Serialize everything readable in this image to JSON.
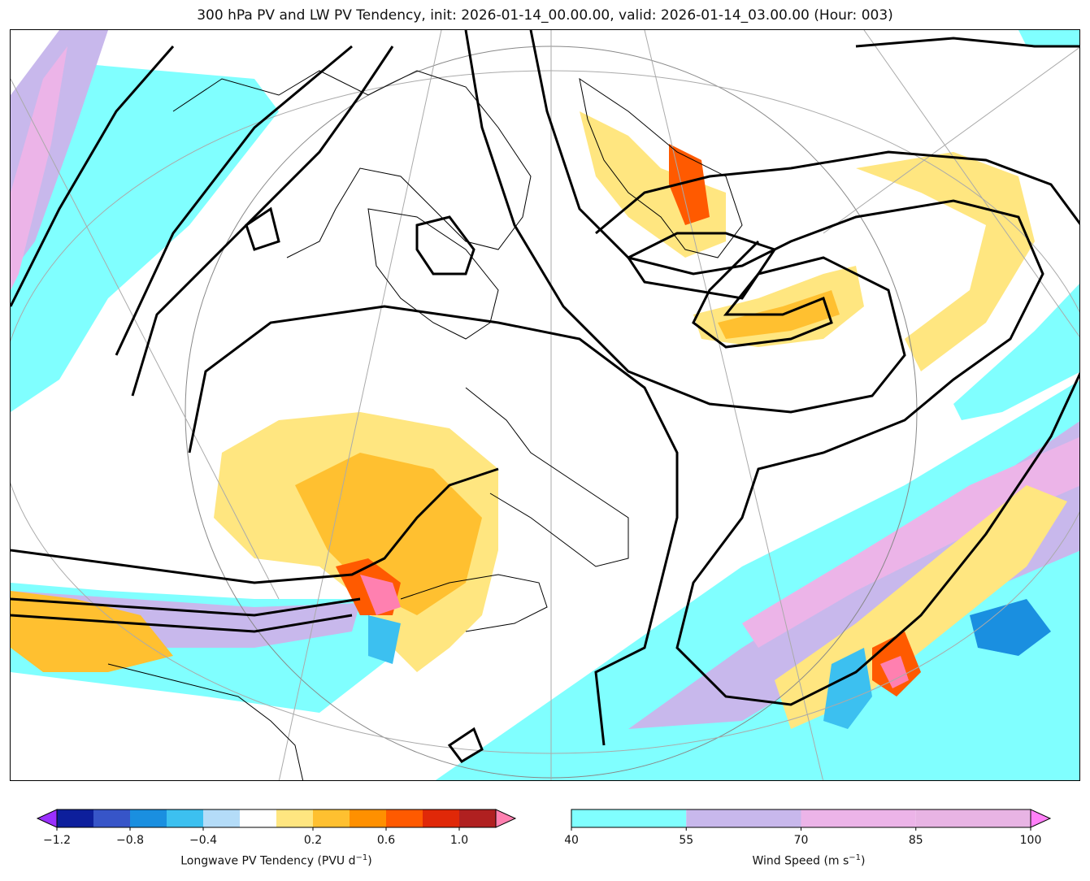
{
  "title": "300 hPa PV and LW PV Tendency, init: 2026-01-14_00.00.00, valid: 2026-01-14_03.00.00 (Hour: 003)",
  "colorbars": {
    "pv_tendency": {
      "label_prefix": "Longwave PV Tendency (PVU d",
      "label_exp": "−1",
      "label_suffix": ")",
      "ticks": [
        "−1.2",
        "−0.8",
        "−0.4",
        "0.2",
        "0.6",
        "1.0"
      ],
      "colors": [
        "#9b30ff",
        "#0d1f9c",
        "#3755c8",
        "#1a8fe0",
        "#3cc0f0",
        "#b4dcf8",
        "#ffffff",
        "#ffe680",
        "#ffc030",
        "#ff9000",
        "#ff5a00",
        "#e02808",
        "#b02020",
        "#ff80b0"
      ]
    },
    "wind_speed": {
      "label_prefix": "Wind Speed (m s",
      "label_exp": "−1",
      "label_suffix": ")",
      "ticks": [
        "40",
        "55",
        "70",
        "85",
        "100"
      ],
      "colors": [
        "#80ffff",
        "#c8b8ec",
        "#ecb4e8",
        "#e8b4e4",
        "#ff80f8"
      ]
    }
  }
}
